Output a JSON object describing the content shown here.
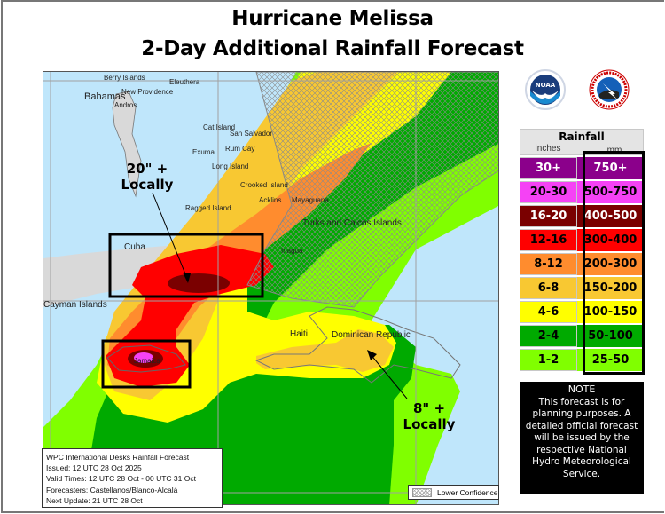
{
  "title": {
    "line1": "Hurricane Melissa",
    "line2": "2-Day Additional Rainfall Forecast"
  },
  "logos": [
    {
      "name": "NOAA",
      "icon": "noaa-logo",
      "text": "NOAA"
    },
    {
      "name": "National Weather Service",
      "icon": "nws-logo",
      "text": "NATIONAL WEATHER SERVICE"
    }
  ],
  "legend": {
    "title": "Rainfall",
    "col_inches": "inches",
    "col_mm": "mm",
    "rows": [
      {
        "inches": "30+",
        "mm": "750+",
        "color": "#8b008b",
        "text_color": "#ffffff"
      },
      {
        "inches": "20-30",
        "mm": "500-750",
        "color": "#f542f5",
        "text_color": "#000000"
      },
      {
        "inches": "16-20",
        "mm": "400-500",
        "color": "#7a0000",
        "text_color": "#ffffff"
      },
      {
        "inches": "12-16",
        "mm": "300-400",
        "color": "#ff0000",
        "text_color": "#000000"
      },
      {
        "inches": "8-12",
        "mm": "200-300",
        "color": "#ff8c2e",
        "text_color": "#000000"
      },
      {
        "inches": "6-8",
        "mm": "150-200",
        "color": "#f8c832",
        "text_color": "#000000"
      },
      {
        "inches": "4-6",
        "mm": "100-150",
        "color": "#ffff00",
        "text_color": "#000000"
      },
      {
        "inches": "2-4",
        "mm": "50-100",
        "color": "#00aa00",
        "text_color": "#000000"
      },
      {
        "inches": "1-2",
        "mm": "25-50",
        "color": "#80ff00",
        "text_color": "#000000"
      }
    ]
  },
  "note": {
    "heading": "NOTE",
    "lines": [
      "This forecast is for",
      "planning purposes. A",
      "detailed official forecast",
      "will be issued by the",
      "respective National",
      "Hydro Meteorological",
      "Service."
    ]
  },
  "map": {
    "places": {
      "berry_islands": "Berry Islands",
      "eleuthera": "Eleuthera",
      "bahamas": "Bahamas",
      "new_providence": "New Providence",
      "andros": "Andros",
      "cat_island": "Cat Island",
      "san_salvador": "San Salvador",
      "rum_cay": "Rum Cay",
      "exuma": "Exuma",
      "long_island": "Long Island",
      "crooked_island": "Crooked Island",
      "acklins": "Acklins",
      "mayaguana": "Mayaguana",
      "ragged_island": "Ragged Island",
      "turks_caicos": "Turks and Caicos Islands",
      "inagua": "Inagua",
      "cuba": "Cuba",
      "cayman": "Cayman Islands",
      "jamaica": "Jamaica",
      "haiti": "Haiti",
      "dominican_republic": "Dominican Republic"
    },
    "annotations": {
      "cuba_max": {
        "value": "20\" +",
        "label": "Locally"
      },
      "dr_max": {
        "value": "8\" +",
        "label": "Locally"
      }
    }
  },
  "info": {
    "line1": "WPC International Desks Rainfall Forecast",
    "line2": "Issued: 12 UTC 28 Oct 2025",
    "line3": "Valid Times: 12 UTC 28 Oct - 00 UTC 31 Oct",
    "line4": "Forecasters: Castellanos/Blanco-Alcalá",
    "line5": "Next Update: 21 UTC 28 Oct"
  },
  "lower_confidence_label": "Lower Confidence"
}
